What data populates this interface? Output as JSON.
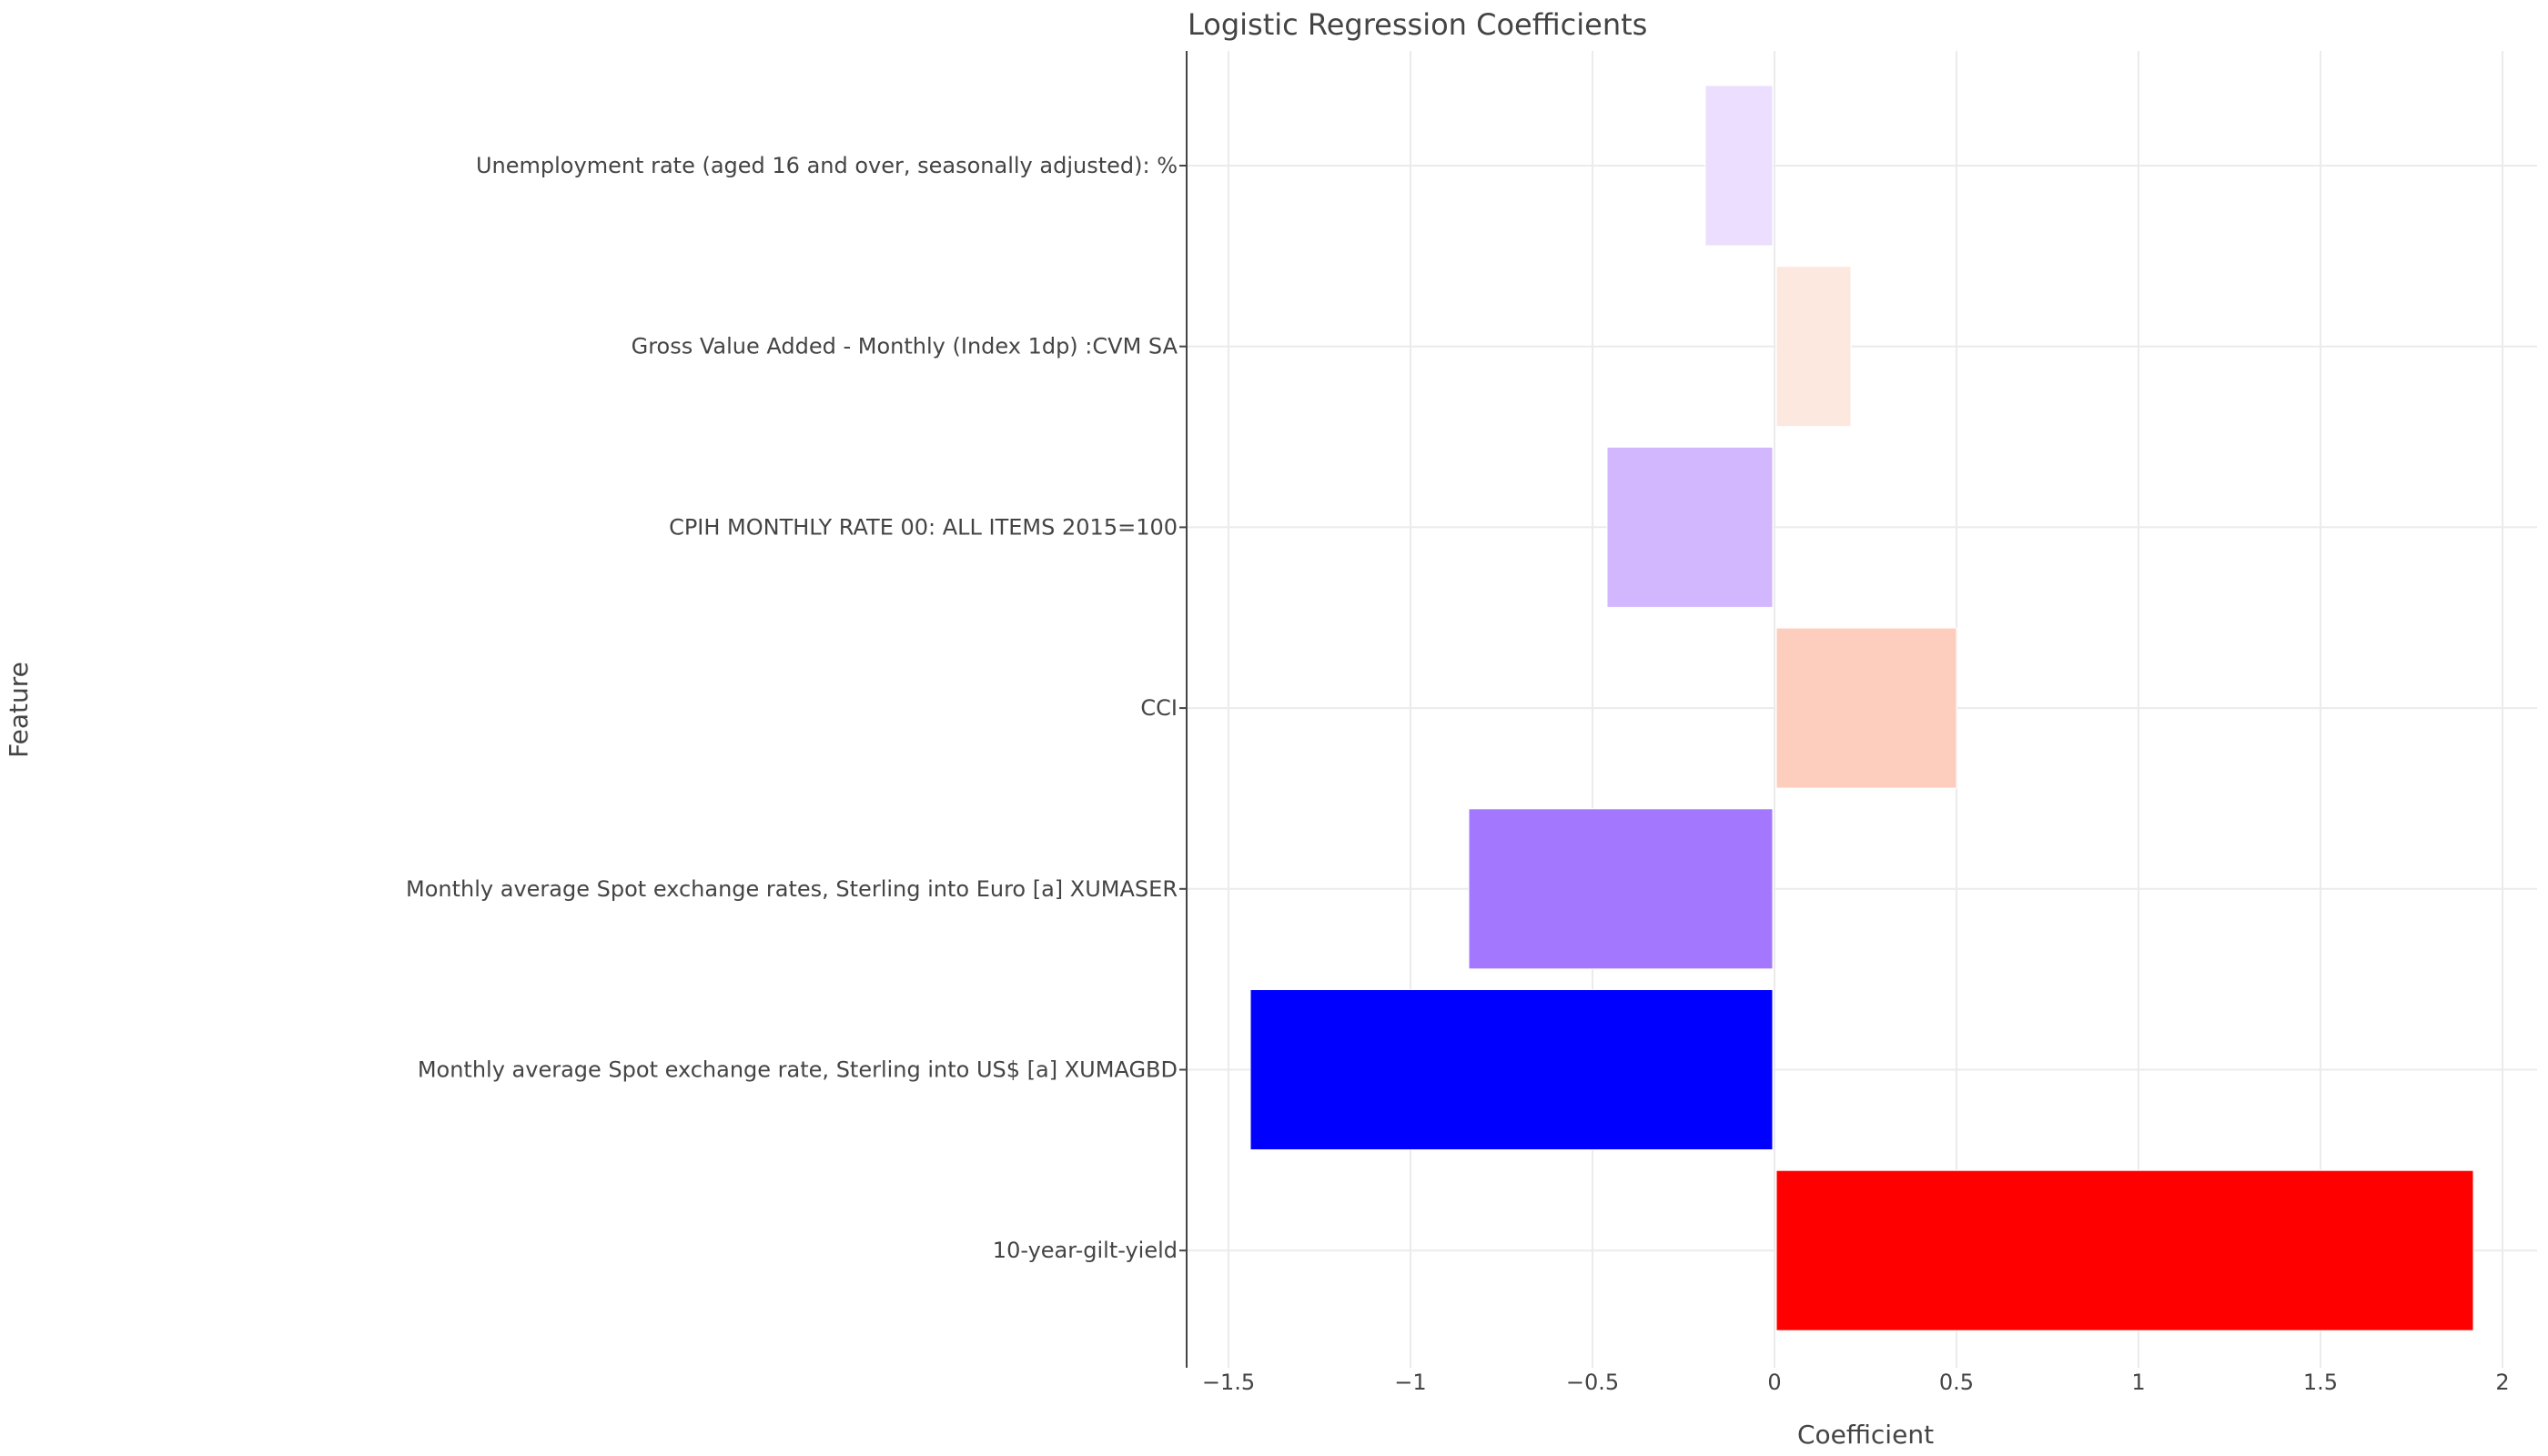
{
  "chart_data": {
    "type": "bar",
    "orientation": "horizontal",
    "title": "Logistic Regression Coefficients",
    "xlabel": "Coefficient",
    "ylabel": "Feature",
    "xlim": [
      -1.6,
      2.1
    ],
    "x_ticks": [
      -1.5,
      -1,
      -0.5,
      0,
      0.5,
      1,
      1.5,
      2
    ],
    "x_tick_labels": [
      "−1.5",
      "−1",
      "−0.5",
      "0",
      "0.5",
      "1",
      "1.5",
      "2"
    ],
    "grid": true,
    "legend": "none",
    "categories": [
      "Unemployment rate (aged 16 and over, seasonally adjusted): %",
      "Gross Value Added - Monthly (Index 1dp) :CVM SA",
      "CPIH MONTHLY RATE 00: ALL ITEMS 2015=100",
      "CCI",
      "Monthly average Spot exchange rates, Sterling into Euro [a] XUMASER",
      "Monthly average Spot exchange rate, Sterling into US$ [a] XUMAGBD",
      "10-year-gilt-yield"
    ],
    "values": [
      -0.19,
      0.21,
      -0.46,
      0.5,
      -0.84,
      -1.44,
      1.92
    ],
    "colors": [
      "#ebdefe",
      "#fde8e0",
      "#d2b6fe",
      "#fdcdbd",
      "#a378fe",
      "#0000ff",
      "#ff0000"
    ]
  }
}
